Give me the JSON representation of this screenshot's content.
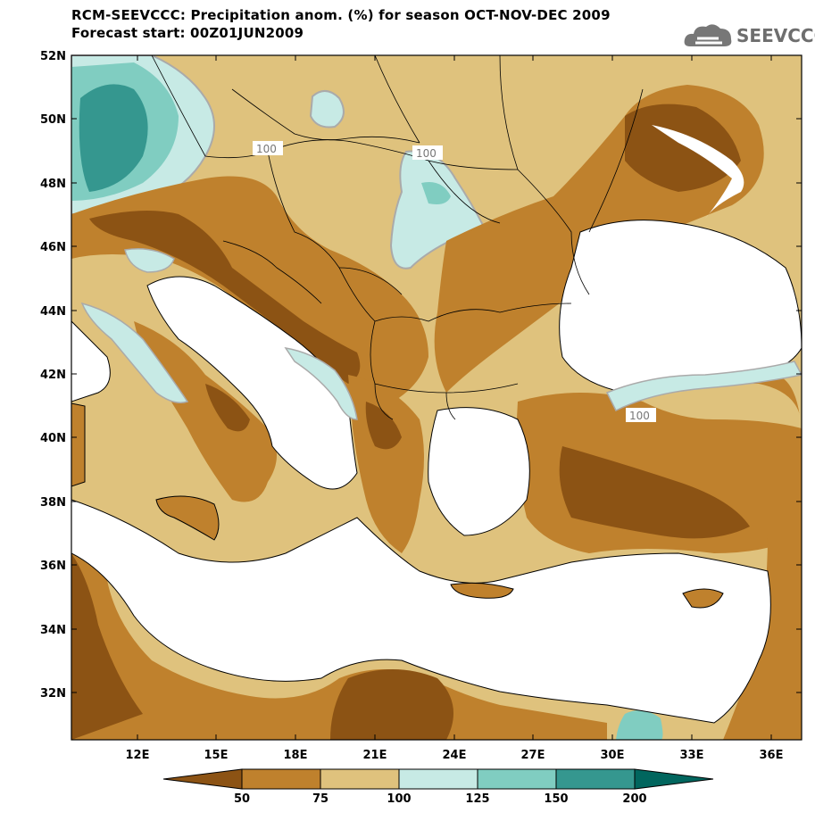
{
  "title": {
    "line1": "RCM-SEEVCCC: Precipitation anom. (%) for season OCT-NOV-DEC 2009",
    "line2": "Forecast start: 00Z01JUN2009"
  },
  "logo": {
    "text": "SEEVCCC",
    "icon": "cloud-icon"
  },
  "axes": {
    "lat_labels": [
      "52N",
      "50N",
      "48N",
      "46N",
      "44N",
      "42N",
      "40N",
      "38N",
      "36N",
      "34N",
      "32N"
    ],
    "lon_labels": [
      "12E",
      "15E",
      "18E",
      "21E",
      "24E",
      "27E",
      "30E",
      "33E",
      "36E"
    ]
  },
  "contour_labels": [
    "100",
    "100",
    "100"
  ],
  "colorbar": {
    "ticks": [
      "50",
      "75",
      "100",
      "125",
      "150",
      "200"
    ],
    "colors": [
      "#8c5314",
      "#bf812d",
      "#dfc27d",
      "#c7eae5",
      "#80cdc1",
      "#35978f",
      "#01665e"
    ]
  },
  "colors": {
    "very_dry": "#8c5314",
    "dry": "#bf812d",
    "slightly_dry": "#dfc27d",
    "slightly_wet": "#c7eae5",
    "wet": "#80cdc1",
    "very_wet": "#35978f",
    "sea": "#ffffff"
  }
}
